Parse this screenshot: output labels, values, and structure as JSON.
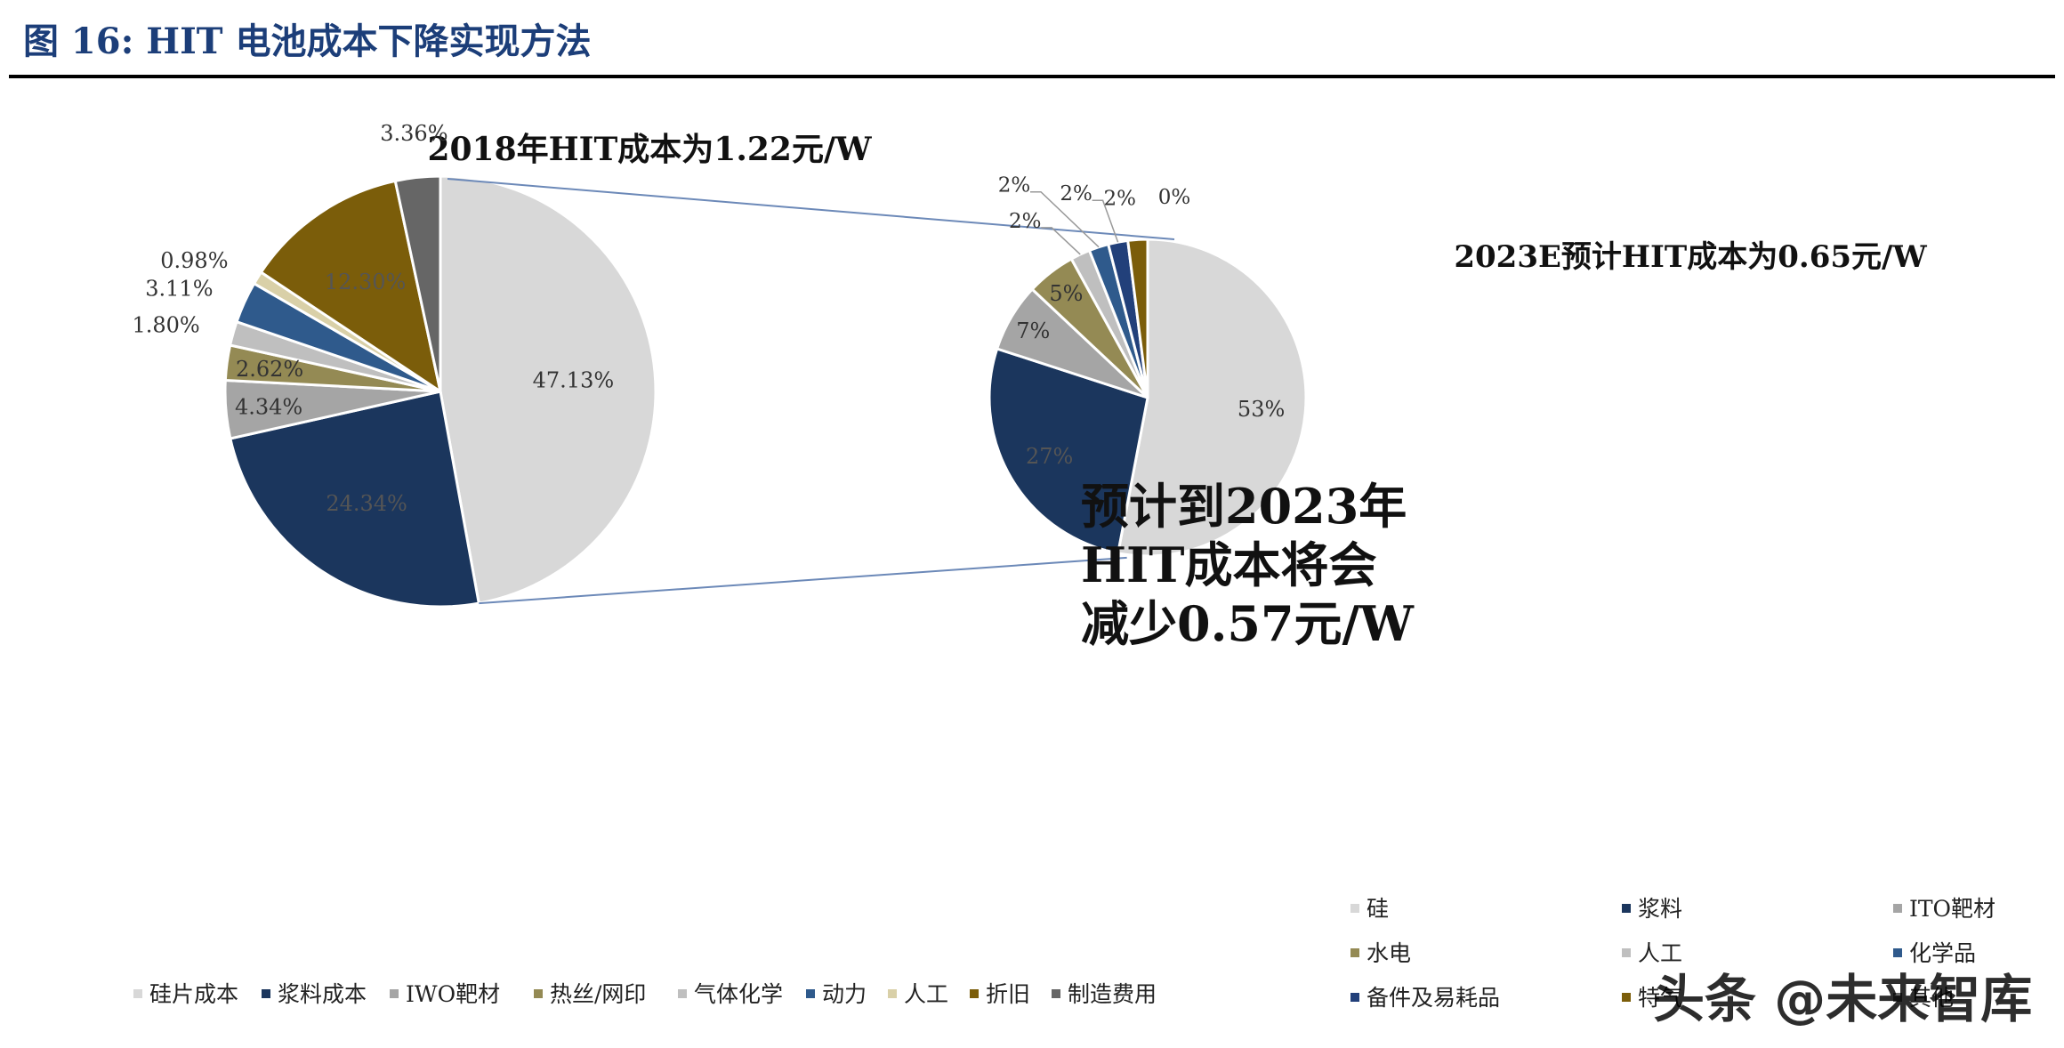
{
  "figure": {
    "title": "图 16:  HIT 电池成本下降实现方法",
    "watermark": "头条 @未来智库"
  },
  "chart_data": [
    {
      "type": "pie",
      "title": "2018年HIT成本为1.22元/W",
      "labels": [
        "硅片成本",
        "浆料成本",
        "IWO靶材",
        "热丝/网印",
        "气体化学",
        "动力",
        "人工",
        "折旧",
        "制造费用"
      ],
      "values": [
        47.13,
        24.34,
        4.34,
        2.62,
        1.8,
        3.11,
        0.98,
        12.3,
        3.36
      ],
      "value_labels": [
        "47.13%",
        "24.34%",
        "4.34%",
        "2.62%",
        "1.80%",
        "3.11%",
        "0.98%",
        "12.30%",
        "3.36%"
      ],
      "colors": [
        "#d8d8d8",
        "#1b365d",
        "#a5a5a5",
        "#948a54",
        "#bfbfbf",
        "#2f5a8c",
        "#d9d0a8",
        "#7b5d0a",
        "#666666"
      ],
      "legend_position": "bottom"
    },
    {
      "type": "pie",
      "title": "2023E预计HIT成本为0.65元/W",
      "labels": [
        "硅",
        "浆料",
        "ITO靶材",
        "水电",
        "人工",
        "化学品",
        "备件及易耗品",
        "特气",
        "其他"
      ],
      "values": [
        53,
        27,
        7,
        5,
        2,
        2,
        2,
        2,
        0
      ],
      "value_labels": [
        "53%",
        "27%",
        "7%",
        "5%",
        "2%",
        "2%",
        "2%",
        "2%",
        "0%"
      ],
      "colors": [
        "#d8d8d8",
        "#1b365d",
        "#a5a5a5",
        "#948a54",
        "#bfbfbf",
        "#2f5a8c",
        "#22407a",
        "#7b5d0a",
        "#666666"
      ],
      "legend_position": "bottom-right"
    }
  ],
  "annotation": {
    "lines": [
      "预计到2023年",
      "HIT成本将会",
      "减少0.57元/W"
    ]
  },
  "legend_left": [
    "硅片成本",
    "浆料成本",
    "IWO靶材",
    "热丝/网印",
    "气体化学",
    "动力",
    "人工",
    "折旧",
    "制造费用"
  ],
  "legend_right": [
    "硅",
    "浆料",
    "ITO靶材",
    "水电",
    "人工",
    "化学品",
    "备件及易耗品",
    "特气",
    "其他"
  ]
}
